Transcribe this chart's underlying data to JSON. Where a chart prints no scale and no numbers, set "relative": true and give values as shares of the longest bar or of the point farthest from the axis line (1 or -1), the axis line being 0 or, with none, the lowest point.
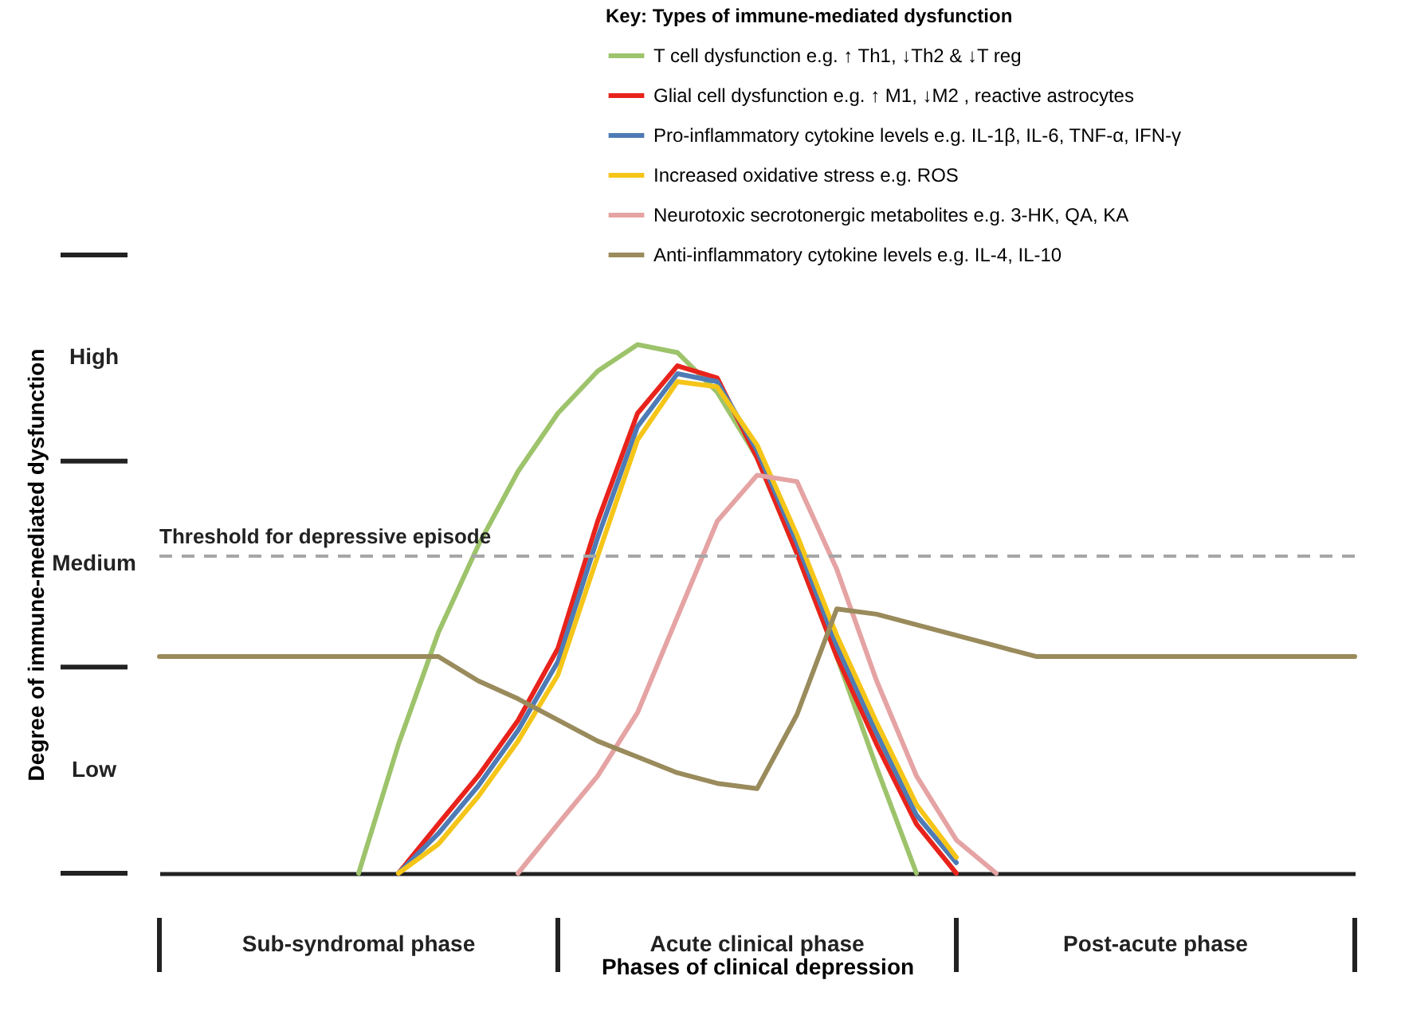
{
  "chart_data": {
    "type": "line",
    "relative": true,
    "xlabel": "Phases of clinical depression",
    "ylabel": "Degree of immune-mediated dysfunction",
    "legend_title": "Key: Types of immune-mediated dysfunction",
    "legend": "top right",
    "marker": "none",
    "line_style": "solid",
    "categories": [
      null,
      null,
      null,
      null,
      null,
      null,
      null,
      null,
      null,
      null,
      null,
      null,
      null,
      null,
      null,
      null,
      null,
      null,
      null,
      null,
      null,
      null,
      null,
      null,
      null,
      null,
      null,
      null,
      null,
      null,
      null
    ],
    "ref_lines": [
      {
        "axis": "y",
        "value": 0.6,
        "label": "Threshold for depressive episode",
        "color": "#a6a6a6",
        "line_style": "dashed"
      }
    ],
    "annotations": [
      "Sub-syndromal phase",
      "Acute clinical phase",
      "Post-acute phase",
      "Low",
      "Medium",
      "High"
    ],
    "series": [
      {
        "name": "T cell dysfunction e.g. ↑ Th1, ↓Th2 & ↓T reg",
        "color": "#9dc36b",
        "values": [
          null,
          null,
          null,
          null,
          null,
          0,
          0.244,
          0.455,
          0.62,
          0.76,
          0.87,
          0.95,
          1,
          0.985,
          0.91,
          0.786,
          0.605,
          0.41,
          0.2,
          0,
          null,
          null,
          null,
          null,
          null,
          null,
          null,
          null,
          null,
          null,
          null
        ]
      },
      {
        "name": "Glial cell dysfunction e.g. ↑ M1, ↓M2 , reactive astrocytes",
        "color": "#e8231c",
        "values": [
          null,
          null,
          null,
          null,
          null,
          null,
          0,
          0.093,
          0.184,
          0.289,
          0.425,
          0.666,
          0.87,
          0.96,
          0.937,
          0.786,
          0.605,
          0.41,
          0.244,
          0.093,
          0,
          null,
          null,
          null,
          null,
          null,
          null,
          null,
          null,
          null,
          null
        ]
      },
      {
        "name": "Pro-inflammatory cytokine levels e.g. IL-1β, IL-6, TNF-α, IFN-γ",
        "color": "#4e7bb5",
        "values": [
          null,
          null,
          null,
          null,
          null,
          null,
          0,
          0.075,
          0.165,
          0.27,
          0.4,
          0.635,
          0.845,
          0.945,
          0.93,
          0.8,
          0.625,
          0.43,
          0.265,
          0.11,
          0.02,
          null,
          null,
          null,
          null,
          null,
          null,
          null,
          null,
          null,
          null
        ]
      },
      {
        "name": "Increased oxidative stress e.g. ROS",
        "color": "#f5c518",
        "values": [
          null,
          null,
          null,
          null,
          null,
          null,
          0,
          0.055,
          0.145,
          0.25,
          0.375,
          0.6,
          0.82,
          0.93,
          0.92,
          0.81,
          0.64,
          0.45,
          0.285,
          0.13,
          0.03,
          null,
          null,
          null,
          null,
          null,
          null,
          null,
          null,
          null,
          null
        ]
      },
      {
        "name": "Neurotoxic secrotonergic metabolites e.g. 3-HK, QA, KA",
        "color": "#e5a3a3",
        "values": [
          null,
          null,
          null,
          null,
          null,
          null,
          null,
          null,
          null,
          0,
          0.093,
          0.184,
          0.304,
          0.485,
          0.666,
          0.753,
          0.741,
          0.575,
          0.364,
          0.184,
          0.063,
          0,
          null,
          null,
          null,
          null,
          null,
          null,
          null,
          null,
          null
        ]
      },
      {
        "name": "Anti-inflammatory cytokine levels e.g. IL-4, IL-10",
        "color": "#9a8b5c",
        "values": [
          0.41,
          0.41,
          0.41,
          0.41,
          0.41,
          0.41,
          0.41,
          0.41,
          0.364,
          0.33,
          0.29,
          0.25,
          0.22,
          0.19,
          0.17,
          0.16,
          0.3,
          0.5,
          0.49,
          0.47,
          0.45,
          0.43,
          0.41,
          0.41,
          0.41,
          0.41,
          0.41,
          0.41,
          0.41,
          0.41,
          0.41
        ]
      }
    ]
  }
}
